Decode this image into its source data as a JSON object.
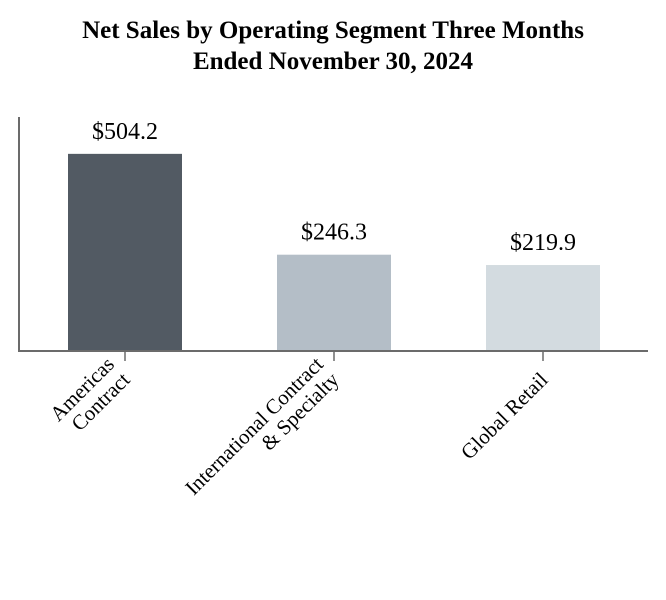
{
  "chart_data": {
    "type": "bar",
    "title_lines": [
      "Net Sales by Operating Segment Three Months",
      "Ended November 30, 2024"
    ],
    "categories": [
      [
        "Americas",
        "Contract"
      ],
      [
        "International Contract",
        "& Specialty"
      ],
      [
        "Global Retail"
      ]
    ],
    "values": [
      504.2,
      246.3,
      219.9
    ],
    "data_labels": [
      "$504.2",
      "$246.3",
      "$219.9"
    ],
    "colors": [
      "#525a63",
      "#b4bec7",
      "#d3dbe0"
    ],
    "xlabel": "",
    "ylabel": "",
    "ylim": [
      0,
      600
    ],
    "grid": false,
    "legend": "none"
  }
}
